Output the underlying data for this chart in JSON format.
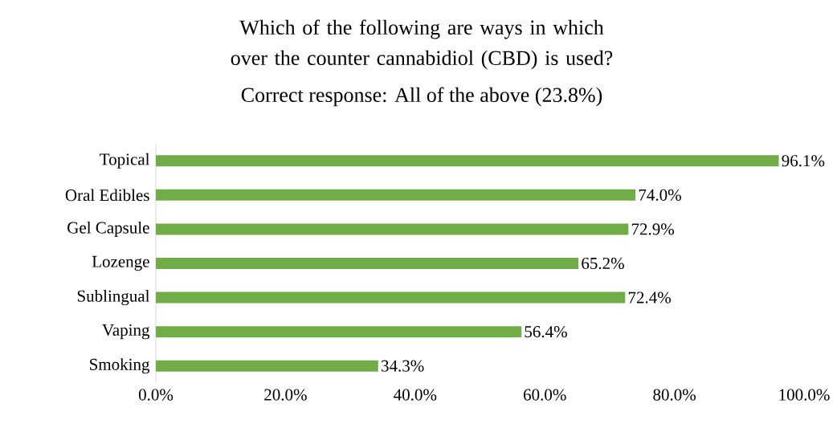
{
  "chart_data": {
    "type": "bar",
    "orientation": "horizontal",
    "title": "Which of the following are ways in which over the counter cannabidiol (CBD) is used?",
    "subtitle": "Correct response: All of the above (23.8%)",
    "categories": [
      "Topical",
      "Oral Edibles",
      "Gel Capsule",
      "Lozenge",
      "Sublingual",
      "Vaping",
      "Smoking"
    ],
    "values": [
      96.1,
      74.0,
      72.9,
      65.2,
      72.4,
      56.4,
      34.3
    ],
    "value_labels": [
      "96.1%",
      "74.0%",
      "72.9%",
      "65.2%",
      "72.4%",
      "56.4%",
      "34.3%"
    ],
    "color": "#70ad47",
    "xlim": [
      0,
      100
    ],
    "xticks": [
      {
        "value": 0,
        "label": "0.0%"
      },
      {
        "value": 20,
        "label": "20.0%"
      },
      {
        "value": 40,
        "label": "40.0%"
      },
      {
        "value": 60,
        "label": "60.0%"
      },
      {
        "value": 80,
        "label": "80.0%"
      },
      {
        "value": 100,
        "label": "100.0%"
      }
    ],
    "grid": false
  }
}
